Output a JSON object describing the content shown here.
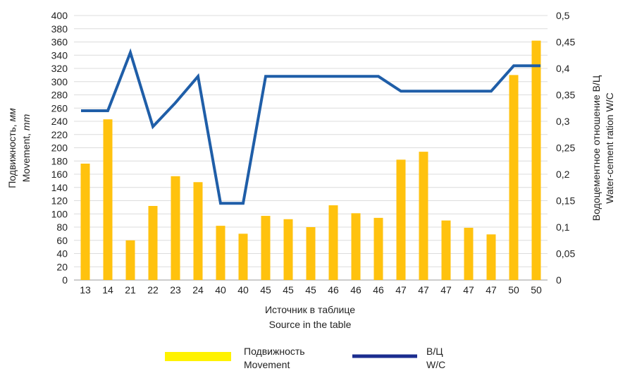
{
  "chart_data": {
    "type": "bar+line",
    "categories": [
      "13",
      "14",
      "21",
      "22",
      "23",
      "24",
      "40",
      "40",
      "45",
      "45",
      "45",
      "46",
      "46",
      "46",
      "47",
      "47",
      "47",
      "47",
      "47",
      "50",
      "50"
    ],
    "series": [
      {
        "name": "Подвижность Movement",
        "type": "bar",
        "axis": "left",
        "color": "#FFC20E",
        "values": [
          176,
          243,
          60,
          112,
          157,
          148,
          82,
          70,
          97,
          92,
          80,
          113,
          101,
          94,
          182,
          194,
          90,
          79,
          69,
          310,
          362
        ]
      },
      {
        "name": "В/Ц W/C",
        "type": "line",
        "axis": "right",
        "color": "#1F5EA8",
        "values": [
          0.32,
          0.32,
          0.43,
          0.29,
          0.335,
          0.385,
          0.145,
          0.145,
          0.385,
          0.385,
          0.385,
          0.385,
          0.385,
          0.385,
          0.357,
          0.357,
          0.357,
          0.357,
          0.357,
          0.405,
          0.405
        ]
      }
    ],
    "xlabel": [
      "Источник в таблице",
      "Source in the table"
    ],
    "ylabel_left": {
      "ru": "Подвижность, ",
      "ru_unit": "мм",
      "en": "Movement, ",
      "en_unit": "mm"
    },
    "ylabel_right": [
      "Водоцементное отношение В/Ц",
      "Water-cement ration W/C"
    ],
    "ylim_left": [
      0,
      400
    ],
    "ylim_right": [
      0,
      0.5
    ],
    "left_ticks": [
      "0",
      "20",
      "40",
      "60",
      "80",
      "100",
      "120",
      "140",
      "160",
      "180",
      "200",
      "220",
      "240",
      "260",
      "280",
      "300",
      "320",
      "340",
      "360",
      "380",
      "400"
    ],
    "right_ticks": [
      "0",
      "0,05",
      "0,1",
      "0,15",
      "0,2",
      "0,25",
      "0,3",
      "0,35",
      "0,4",
      "0,45",
      "0,5"
    ],
    "grid": true,
    "legend_position": "bottom",
    "legend": [
      {
        "line1": "Подвижность",
        "line2": "Movement",
        "color": "#FFF200",
        "kind": "bar"
      },
      {
        "line1": "В/Ц",
        "line2": "W/C",
        "color": "#1B2D8F",
        "kind": "line"
      }
    ]
  }
}
